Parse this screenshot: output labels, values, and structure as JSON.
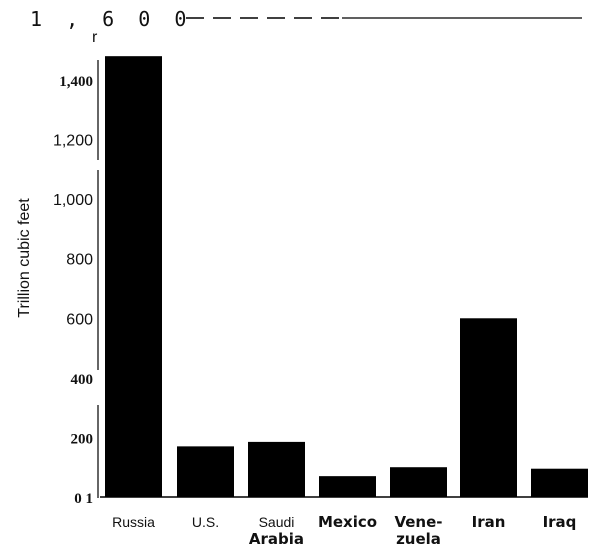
{
  "chart_data": {
    "type": "bar",
    "ylabel": "Trillion cubic feet",
    "ylim": [
      0,
      1600
    ],
    "categories": [
      "Russia",
      "U.S.",
      "Saudi Arabia",
      "Mexico",
      "Vene-zuela",
      "Iran",
      "Iraq"
    ],
    "category_lines": [
      [
        "Russia"
      ],
      [
        "U.S."
      ],
      [
        "Saudi",
        "Arabia"
      ],
      [
        "Mexico"
      ],
      [
        "Vene-",
        "zuela"
      ],
      [
        "Iran"
      ],
      [
        "Iraq"
      ]
    ],
    "values": [
      1480,
      170,
      185,
      70,
      100,
      600,
      95
    ],
    "yticks": [
      {
        "value": 0,
        "label": "0 1"
      },
      {
        "value": 200,
        "label": "200"
      },
      {
        "value": 400,
        "label": "400"
      },
      {
        "value": 600,
        "label": "600"
      },
      {
        "value": 800,
        "label": "800"
      },
      {
        "value": 1000,
        "label": "1,000"
      },
      {
        "value": 1200,
        "label": "1,200"
      },
      {
        "value": 1400,
        "label": "1,400"
      },
      {
        "value": 1600,
        "label": "1 , 6 0 0"
      }
    ],
    "top_tick_mark": "r",
    "bar_color": "#000000",
    "grid": false
  }
}
